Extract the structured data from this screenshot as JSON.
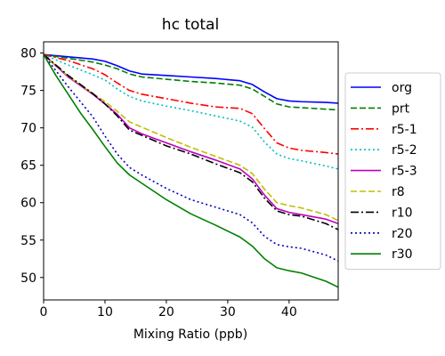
{
  "chart_data": {
    "type": "line",
    "title": "hc total",
    "xlabel": "Mixing Ratio (ppb)",
    "ylabel": "",
    "xlim": [
      0,
      48
    ],
    "ylim": [
      47,
      81.5
    ],
    "xticks": [
      0,
      10,
      20,
      30,
      40
    ],
    "yticks": [
      50,
      55,
      60,
      65,
      70,
      75,
      80
    ],
    "grid": false,
    "legend_position": "right",
    "series": [
      {
        "name": "org",
        "color": "#0000ff",
        "dash": "solid",
        "x": [
          0,
          4,
          8,
          10,
          12,
          14,
          16,
          20,
          24,
          28,
          32,
          34,
          36,
          38,
          40,
          42,
          46,
          48
        ],
        "y": [
          79.8,
          79.5,
          79.2,
          78.9,
          78.3,
          77.6,
          77.2,
          77.0,
          76.8,
          76.6,
          76.3,
          75.8,
          74.8,
          73.9,
          73.6,
          73.5,
          73.4,
          73.3
        ]
      },
      {
        "name": "prt",
        "color": "#008000",
        "dash": "dashed",
        "x": [
          0,
          4,
          8,
          10,
          12,
          14,
          16,
          20,
          24,
          28,
          32,
          34,
          36,
          38,
          40,
          42,
          46,
          48
        ],
        "y": [
          79.8,
          79.3,
          78.8,
          78.4,
          77.9,
          77.2,
          76.8,
          76.5,
          76.2,
          76.0,
          75.7,
          75.2,
          74.2,
          73.2,
          72.8,
          72.7,
          72.5,
          72.4
        ]
      },
      {
        "name": "r5-1",
        "color": "#ff0000",
        "dash": "dashdot",
        "x": [
          0,
          4,
          8,
          10,
          12,
          14,
          16,
          20,
          24,
          28,
          32,
          34,
          36,
          38,
          40,
          42,
          46,
          48
        ],
        "y": [
          79.8,
          79.0,
          77.9,
          77.1,
          76.0,
          75.0,
          74.5,
          73.9,
          73.3,
          72.8,
          72.6,
          71.9,
          69.9,
          68.0,
          67.3,
          67.0,
          66.7,
          66.5
        ]
      },
      {
        "name": "r5-2",
        "color": "#00bfbf",
        "dash": "dotted",
        "x": [
          0,
          4,
          8,
          10,
          12,
          14,
          16,
          20,
          24,
          28,
          32,
          34,
          36,
          38,
          40,
          42,
          46,
          48
        ],
        "y": [
          79.8,
          78.4,
          77.1,
          76.4,
          75.2,
          74.2,
          73.6,
          72.9,
          72.3,
          71.6,
          70.9,
          70.1,
          68.1,
          66.5,
          65.9,
          65.6,
          64.9,
          64.5
        ]
      },
      {
        "name": "r5-3",
        "color": "#bf00bf",
        "dash": "solid",
        "x": [
          0,
          4,
          8,
          10,
          12,
          14,
          16,
          20,
          24,
          28,
          32,
          34,
          36,
          38,
          40,
          42,
          46,
          48
        ],
        "y": [
          79.8,
          76.8,
          74.5,
          73.2,
          71.8,
          70.0,
          69.2,
          68.0,
          66.8,
          65.7,
          64.5,
          63.2,
          61.0,
          59.2,
          58.7,
          58.4,
          57.8,
          57.2
        ]
      },
      {
        "name": "r8",
        "color": "#bfbf00",
        "dash": "dashed",
        "x": [
          0,
          4,
          8,
          10,
          12,
          14,
          16,
          20,
          24,
          28,
          32,
          34,
          36,
          38,
          40,
          42,
          46,
          48
        ],
        "y": [
          79.8,
          76.9,
          74.6,
          73.5,
          72.2,
          70.8,
          70.1,
          68.7,
          67.4,
          66.2,
          65.0,
          63.9,
          61.8,
          60.0,
          59.6,
          59.3,
          58.4,
          57.6
        ]
      },
      {
        "name": "r10",
        "color": "#000000",
        "dash": "dashdot",
        "x": [
          0,
          4,
          8,
          10,
          12,
          14,
          16,
          20,
          24,
          28,
          32,
          34,
          36,
          38,
          40,
          42,
          46,
          48
        ],
        "y": [
          79.8,
          77.0,
          74.6,
          73.2,
          71.6,
          69.7,
          69.0,
          67.6,
          66.5,
          65.2,
          64.0,
          62.8,
          60.6,
          58.9,
          58.4,
          58.2,
          57.2,
          56.4
        ]
      },
      {
        "name": "r20",
        "color": "#0000bf",
        "dash": "dotted",
        "x": [
          0,
          4,
          8,
          10,
          12,
          14,
          16,
          20,
          24,
          28,
          32,
          34,
          36,
          38,
          40,
          42,
          46,
          48
        ],
        "y": [
          79.8,
          75.5,
          71.5,
          68.9,
          66.5,
          64.7,
          63.7,
          61.9,
          60.4,
          59.4,
          58.4,
          57.3,
          55.5,
          54.4,
          54.1,
          53.9,
          53.0,
          52.2
        ]
      },
      {
        "name": "r30",
        "color": "#008000",
        "dash": "solid",
        "x": [
          0,
          2,
          4,
          6,
          8,
          10,
          12,
          14,
          16,
          20,
          24,
          28,
          32,
          34,
          36,
          38,
          40,
          42,
          46,
          48
        ],
        "y": [
          79.8,
          77.0,
          74.5,
          72.0,
          69.8,
          67.5,
          65.3,
          63.7,
          62.6,
          60.4,
          58.5,
          57.0,
          55.4,
          54.2,
          52.5,
          51.3,
          50.9,
          50.6,
          49.5,
          48.7
        ]
      }
    ]
  }
}
